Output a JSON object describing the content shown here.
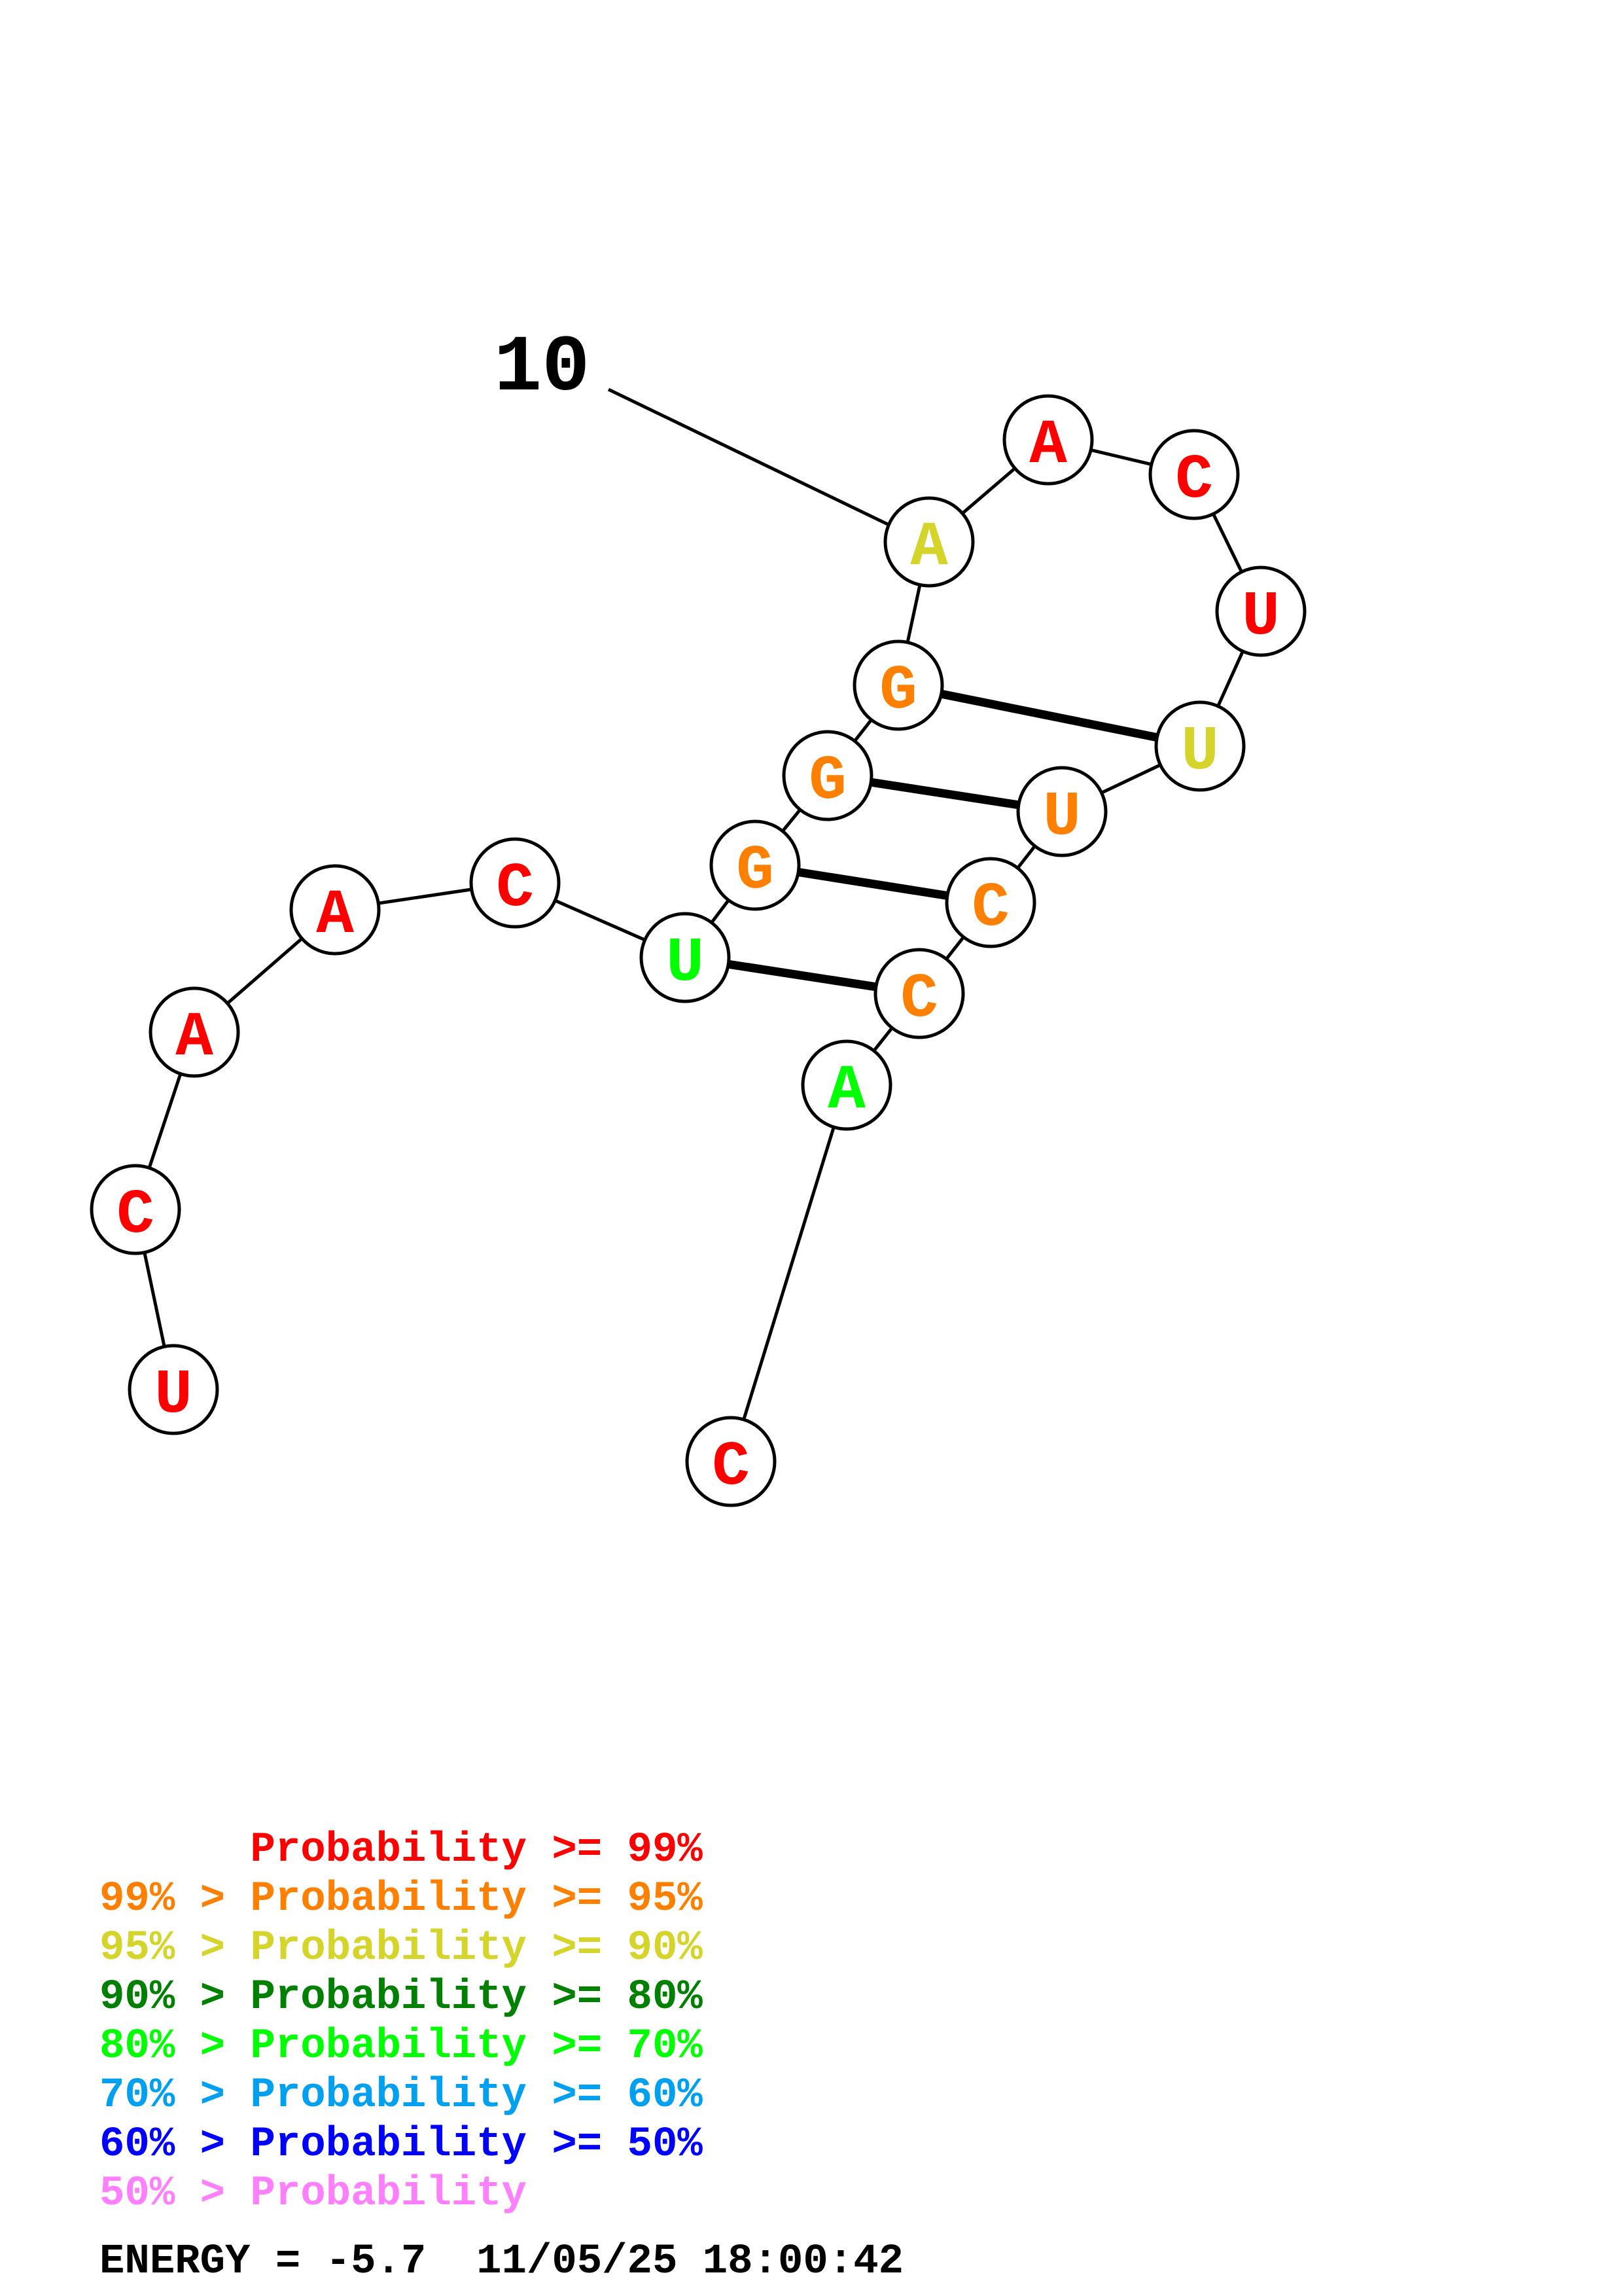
{
  "sequence_label": "10",
  "colors": {
    "p99": "#ff0000",
    "p95": "#ff8000",
    "p90": "#d4d42a",
    "p80": "#008000",
    "p70": "#00ff00",
    "p60": "#00a0f0",
    "p50": "#0000ff",
    "plow": "#ff80ff"
  },
  "nucleotides": [
    {
      "base": "U",
      "color": "p99"
    },
    {
      "base": "C",
      "color": "p99"
    },
    {
      "base": "A",
      "color": "p99"
    },
    {
      "base": "A",
      "color": "p99"
    },
    {
      "base": "C",
      "color": "p99"
    },
    {
      "base": "U",
      "color": "p70"
    },
    {
      "base": "G",
      "color": "p95"
    },
    {
      "base": "G",
      "color": "p95"
    },
    {
      "base": "G",
      "color": "p95"
    },
    {
      "base": "A",
      "color": "p90"
    },
    {
      "base": "A",
      "color": "p99"
    },
    {
      "base": "C",
      "color": "p99"
    },
    {
      "base": "U",
      "color": "p99"
    },
    {
      "base": "U",
      "color": "p90"
    },
    {
      "base": "U",
      "color": "p95"
    },
    {
      "base": "C",
      "color": "p95"
    },
    {
      "base": "C",
      "color": "p95"
    },
    {
      "base": "A",
      "color": "p70"
    },
    {
      "base": "C",
      "color": "p99"
    }
  ],
  "pairs": [
    [
      6,
      17
    ],
    [
      7,
      16
    ],
    [
      8,
      15
    ],
    [
      9,
      14
    ]
  ],
  "legend": [
    {
      "prefix": "",
      "text": "Probability >= 99%",
      "color": "p99"
    },
    {
      "prefix": "99% > ",
      "text": "Probability >= 95%",
      "color": "p95"
    },
    {
      "prefix": "95% > ",
      "text": "Probability >= 90%",
      "color": "p90"
    },
    {
      "prefix": "90% > ",
      "text": "Probability >= 80%",
      "color": "p80"
    },
    {
      "prefix": "80% > ",
      "text": "Probability >= 70%",
      "color": "p70"
    },
    {
      "prefix": "70% > ",
      "text": "Probability >= 60%",
      "color": "p60"
    },
    {
      "prefix": "60% > ",
      "text": "Probability >= 50%",
      "color": "p50"
    },
    {
      "prefix": "50% > ",
      "text": "Probability",
      "color": "plow"
    }
  ],
  "energy": {
    "label": "ENERGY = -5.7",
    "timestamp": "11/05/25 18:00:42"
  }
}
